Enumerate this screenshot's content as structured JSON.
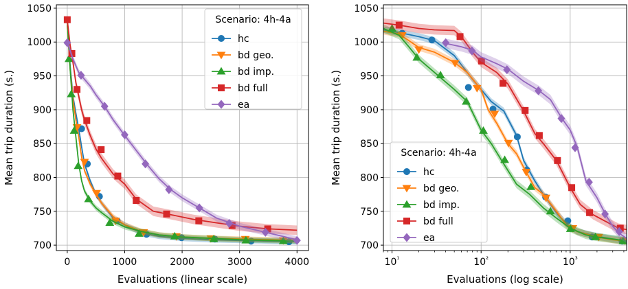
{
  "chart_data": [
    {
      "type": "line",
      "xscale": "linear",
      "xlabel": "Evaluations (linear scale)",
      "ylabel": "Mean trip duration (s.)",
      "xlim": [
        -190,
        4200
      ],
      "ylim": [
        692,
        1055
      ],
      "xticks": [
        0,
        1000,
        2000,
        3000,
        4000
      ],
      "xtick_labels": [
        "0",
        "1000",
        "2000",
        "3000",
        "4000"
      ],
      "yticks": [
        700,
        750,
        800,
        850,
        900,
        950,
        1000,
        1050
      ],
      "ytick_labels": [
        "700",
        "750",
        "800",
        "850",
        "900",
        "950",
        "1000",
        "1050"
      ],
      "grid": true,
      "legend": {
        "title": "Scenario: 4h-4a",
        "position": "top-right"
      },
      "series": [
        {
          "name": "hc",
          "color": "#1f77b4",
          "marker": "circle",
          "band": 4,
          "x": [
            0,
            50,
            100,
            150,
            200,
            250,
            300,
            400,
            500,
            600,
            800,
            1000,
            1300,
            1600,
            2000,
            2500,
            3000,
            3500,
            4000
          ],
          "y": [
            1025,
            965,
            920,
            895,
            872,
            845,
            820,
            795,
            775,
            762,
            740,
            730,
            718,
            713,
            710,
            708,
            707,
            706,
            705
          ],
          "markers": [
            [
              250,
              872
            ],
            [
              350,
              820
            ],
            [
              560,
              772
            ],
            [
              870,
              736
            ],
            [
              1380,
              716
            ],
            [
              1990,
              711
            ],
            [
              2570,
              709
            ],
            [
              3200,
              706
            ],
            [
              3860,
              705
            ]
          ]
        },
        {
          "name": "bd geo.",
          "color": "#ff7f0e",
          "marker": "triangle-down",
          "band": 4,
          "x": [
            0,
            50,
            100,
            150,
            200,
            250,
            300,
            400,
            500,
            600,
            800,
            1000,
            1300,
            1600,
            2000,
            2500,
            3000,
            3500,
            4000
          ],
          "y": [
            1025,
            960,
            915,
            885,
            860,
            830,
            810,
            790,
            775,
            762,
            742,
            730,
            720,
            715,
            712,
            710,
            709,
            708,
            707
          ],
          "markers": [
            [
              170,
              874
            ],
            [
              300,
              823
            ],
            [
              510,
              777
            ],
            [
              840,
              736
            ],
            [
              1330,
              719
            ],
            [
              1900,
              713
            ],
            [
              2500,
              710
            ],
            [
              3100,
              709
            ],
            [
              3760,
              707
            ]
          ]
        },
        {
          "name": "bd imp.",
          "color": "#2ca02c",
          "marker": "triangle-up",
          "band": 4,
          "x": [
            0,
            50,
            100,
            150,
            200,
            250,
            300,
            400,
            500,
            600,
            800,
            1000,
            1300,
            1600,
            2000,
            2500,
            3000,
            3500,
            4000
          ],
          "y": [
            1030,
            960,
            900,
            860,
            820,
            795,
            780,
            765,
            755,
            748,
            735,
            727,
            720,
            715,
            712,
            710,
            708,
            707,
            706
          ],
          "markers": [
            [
              30,
              975
            ],
            [
              70,
              923
            ],
            [
              120,
              869
            ],
            [
              190,
              817
            ],
            [
              370,
              768
            ],
            [
              740,
              733
            ],
            [
              1250,
              717
            ],
            [
              1870,
              713
            ],
            [
              2550,
              709
            ],
            [
              3110,
              707
            ],
            [
              3760,
              706
            ]
          ]
        },
        {
          "name": "bd full",
          "color": "#d62728",
          "marker": "square",
          "band": 7,
          "x": [
            0,
            50,
            100,
            150,
            200,
            250,
            300,
            400,
            500,
            600,
            800,
            1000,
            1200,
            1500,
            1800,
            2200,
            2600,
            3000,
            3500,
            4000
          ],
          "y": [
            1033,
            995,
            970,
            940,
            920,
            900,
            885,
            862,
            842,
            828,
            805,
            790,
            768,
            750,
            745,
            738,
            733,
            728,
            724,
            722
          ],
          "markers": [
            [
              0,
              1033
            ],
            [
              80,
              983
            ],
            [
              170,
              930
            ],
            [
              340,
              884
            ],
            [
              590,
              841
            ],
            [
              880,
              802
            ],
            [
              1200,
              766
            ],
            [
              1730,
              746
            ],
            [
              2290,
              736
            ],
            [
              2870,
              729
            ],
            [
              3490,
              724
            ]
          ]
        },
        {
          "name": "ea",
          "color": "#9467bd",
          "marker": "diamond",
          "band": 5,
          "x": [
            0,
            100,
            200,
            300,
            400,
            500,
            650,
            800,
            1000,
            1200,
            1400,
            1600,
            1800,
            2000,
            2300,
            2600,
            3000,
            3400,
            3800,
            4000
          ],
          "y": [
            1000,
            975,
            955,
            945,
            935,
            922,
            905,
            885,
            862,
            840,
            818,
            798,
            782,
            770,
            755,
            740,
            728,
            720,
            712,
            708
          ],
          "markers": [
            [
              0,
              999
            ],
            [
              240,
              951
            ],
            [
              650,
              905
            ],
            [
              1000,
              863
            ],
            [
              1360,
              820
            ],
            [
              1770,
              782
            ],
            [
              2300,
              755
            ],
            [
              2820,
              732
            ],
            [
              3450,
              719
            ],
            [
              4000,
              707
            ]
          ]
        }
      ]
    },
    {
      "type": "line",
      "xscale": "log",
      "xlabel": "Evaluations (log scale)",
      "ylabel": "Mean trip duration (s.)",
      "xlim": [
        8,
        4300
      ],
      "ylim": [
        692,
        1055
      ],
      "xticks": [
        10,
        100,
        1000
      ],
      "xtick_labels": [
        "10¹",
        "10²",
        "10³"
      ],
      "yticks": [
        700,
        750,
        800,
        850,
        900,
        950,
        1000,
        1050
      ],
      "ytick_labels": [
        "700",
        "750",
        "800",
        "850",
        "900",
        "950",
        "1000",
        "1050"
      ],
      "grid": true,
      "legend": {
        "title": "Scenario: 4h-4a",
        "position": "lower-left"
      },
      "series": [
        {
          "name": "hc",
          "color": "#1f77b4",
          "marker": "circle",
          "band": 5,
          "x": [
            8,
            12,
            20,
            30,
            50,
            80,
            100,
            130,
            180,
            250,
            300,
            400,
            500,
            700,
            900,
            1200,
            2000,
            3000,
            4300
          ],
          "y": [
            1018,
            1014,
            1008,
            1002,
            980,
            945,
            930,
            912,
            898,
            862,
            825,
            795,
            775,
            748,
            732,
            720,
            713,
            709,
            706
          ],
          "markers": [
            [
              13,
              1013
            ],
            [
              28,
              1003
            ],
            [
              72,
              933
            ],
            [
              136,
              901
            ],
            [
              255,
              860
            ],
            [
              326,
              811
            ],
            [
              530,
              771
            ],
            [
              940,
              736
            ],
            [
              1760,
              712
            ],
            [
              3820,
              706
            ]
          ]
        },
        {
          "name": "bd geo.",
          "color": "#ff7f0e",
          "marker": "triangle-down",
          "band": 5,
          "x": [
            8,
            12,
            20,
            30,
            50,
            70,
            100,
            120,
            150,
            200,
            250,
            300,
            400,
            500,
            700,
            900,
            1200,
            2000,
            3000,
            4300
          ],
          "y": [
            1016,
            1012,
            992,
            985,
            970,
            955,
            930,
            900,
            880,
            850,
            835,
            815,
            785,
            775,
            750,
            730,
            720,
            712,
            708,
            706
          ],
          "markers": [
            [
              13,
              1010
            ],
            [
              20,
              989
            ],
            [
              51,
              969
            ],
            [
              90,
              932
            ],
            [
              142,
              894
            ],
            [
              203,
              851
            ],
            [
              321,
              808
            ],
            [
              535,
              770
            ],
            [
              1070,
              725
            ],
            [
              2090,
              712
            ],
            [
              4070,
              707
            ]
          ]
        },
        {
          "name": "bd imp.",
          "color": "#2ca02c",
          "marker": "triangle-up",
          "band": 6,
          "x": [
            8,
            12,
            15,
            20,
            30,
            50,
            70,
            100,
            130,
            170,
            250,
            350,
            500,
            700,
            1000,
            1500,
            2000,
            3000,
            4300
          ],
          "y": [
            1020,
            1010,
            995,
            975,
            955,
            930,
            912,
            870,
            850,
            825,
            790,
            775,
            755,
            740,
            725,
            715,
            712,
            709,
            706
          ],
          "markers": [
            [
              10,
              1020
            ],
            [
              19,
              977
            ],
            [
              35,
              951
            ],
            [
              68,
              912
            ],
            [
              106,
              869
            ],
            [
              184,
              826
            ],
            [
              362,
              786
            ],
            [
              600,
              750
            ],
            [
              1005,
              724
            ],
            [
              1920,
              712
            ],
            [
              3920,
              706
            ]
          ]
        },
        {
          "name": "bd full",
          "color": "#d62728",
          "marker": "square",
          "band": 7,
          "x": [
            8,
            12,
            20,
            30,
            50,
            60,
            80,
            100,
            150,
            200,
            300,
            400,
            500,
            700,
            1000,
            1300,
            1800,
            2500,
            3500,
            4300
          ],
          "y": [
            1028,
            1025,
            1020,
            1018,
            1017,
            1008,
            985,
            970,
            955,
            938,
            898,
            865,
            850,
            825,
            785,
            760,
            745,
            735,
            725,
            723
          ],
          "markers": [
            [
              12,
              1025
            ],
            [
              58,
              1008
            ],
            [
              101,
              972
            ],
            [
              176,
              939
            ],
            [
              312,
              899
            ],
            [
              450,
              862
            ],
            [
              720,
              825
            ],
            [
              1040,
              785
            ],
            [
              1650,
              748
            ],
            [
              3650,
              725
            ]
          ]
        },
        {
          "name": "ea",
          "color": "#9467bd",
          "marker": "diamond",
          "band": 7,
          "x": [
            40,
            60,
            80,
            100,
            150,
            200,
            300,
            450,
            600,
            800,
            1000,
            1200,
            1500,
            2000,
            2500,
            3000,
            3500,
            4300
          ],
          "y": [
            998,
            993,
            988,
            978,
            968,
            960,
            942,
            928,
            915,
            888,
            870,
            845,
            795,
            770,
            745,
            728,
            718,
            710
          ],
          "markers": [
            [
              40,
              999
            ],
            [
              79,
              987
            ],
            [
              195,
              959
            ],
            [
              440,
              928
            ],
            [
              795,
              887
            ],
            [
              1135,
              844
            ],
            [
              1630,
              793
            ],
            [
              2460,
              746
            ],
            [
              3550,
              720
            ]
          ]
        }
      ]
    }
  ]
}
